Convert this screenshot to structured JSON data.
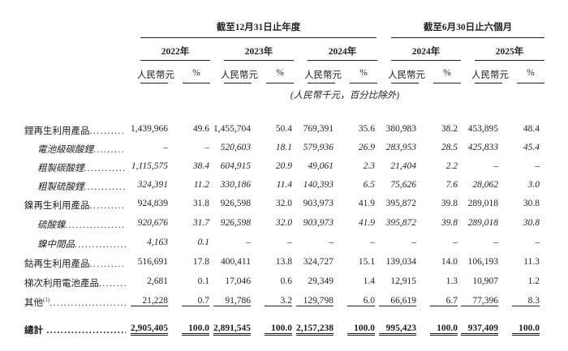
{
  "header": {
    "group_annual": "截至12月31日止年度",
    "group_interim": "截至6月30日止六個月",
    "years": [
      "2022年",
      "2023年",
      "2024年",
      "2024年",
      "2025年"
    ],
    "amount_label": "人民幣元",
    "percent_label": "%",
    "unit_note": "(人民幣千元，百分比除外)"
  },
  "rows": [
    {
      "label": "鋰再生利用產品",
      "sub": false,
      "values": [
        "1,439,966",
        "49.6",
        "1,455,704",
        "50.4",
        "769,391",
        "35.6",
        "380,983",
        "38.2",
        "453,895",
        "48.4"
      ]
    },
    {
      "label": "電池級碳酸鋰",
      "sub": true,
      "values": [
        "–",
        "–",
        "520,603",
        "18.1",
        "579,936",
        "26.9",
        "283,953",
        "28.5",
        "425,833",
        "45.4"
      ]
    },
    {
      "label": "粗製碳酸鋰",
      "sub": true,
      "values": [
        "1,115,575",
        "38.4",
        "604,915",
        "20.9",
        "49,061",
        "2.3",
        "21,404",
        "2.2",
        "–",
        "–"
      ]
    },
    {
      "label": "粗製硫酸鋰",
      "sub": true,
      "values": [
        "324,391",
        "11.2",
        "330,186",
        "11.4",
        "140,393",
        "6.5",
        "75,626",
        "7.6",
        "28,062",
        "3.0"
      ]
    },
    {
      "label": "鎳再生利用產品",
      "sub": false,
      "values": [
        "924,839",
        "31.8",
        "926,598",
        "32.0",
        "903,973",
        "41.9",
        "395,872",
        "39.8",
        "289,018",
        "30.8"
      ]
    },
    {
      "label": "硫酸鎳",
      "sub": true,
      "values": [
        "920,676",
        "31.7",
        "926,598",
        "32.0",
        "903,973",
        "41.9",
        "395,872",
        "39.8",
        "289,018",
        "30.8"
      ]
    },
    {
      "label": "鎳中間品",
      "sub": true,
      "values": [
        "4,163",
        "0.1",
        "–",
        "–",
        "–",
        "–",
        "–",
        "–",
        "–",
        "–"
      ]
    },
    {
      "label": "鈷再生利用產品",
      "sub": false,
      "values": [
        "516,691",
        "17.8",
        "400,411",
        "13.8",
        "324,727",
        "15.1",
        "139,034",
        "14.0",
        "106,193",
        "11.3"
      ]
    },
    {
      "label": "梯次利用電池產品",
      "sub": false,
      "values": [
        "2,681",
        "0.1",
        "17,046",
        "0.6",
        "29,349",
        "1.4",
        "12,915",
        "1.3",
        "10,907",
        "1.2"
      ]
    },
    {
      "label": "其他",
      "footnote": "(1)",
      "sub": false,
      "values": [
        "21,228",
        "0.7",
        "91,786",
        "3.2",
        "129,798",
        "6.0",
        "66,619",
        "6.7",
        "77,396",
        "8.3"
      ]
    },
    {
      "label": "總計",
      "sub": false,
      "total": true,
      "values": [
        "2,905,405",
        "100.0",
        "2,891,545",
        "100.0",
        "2,157,238",
        "100.0",
        "995,423",
        "100.0",
        "937,409",
        "100.0"
      ]
    }
  ]
}
